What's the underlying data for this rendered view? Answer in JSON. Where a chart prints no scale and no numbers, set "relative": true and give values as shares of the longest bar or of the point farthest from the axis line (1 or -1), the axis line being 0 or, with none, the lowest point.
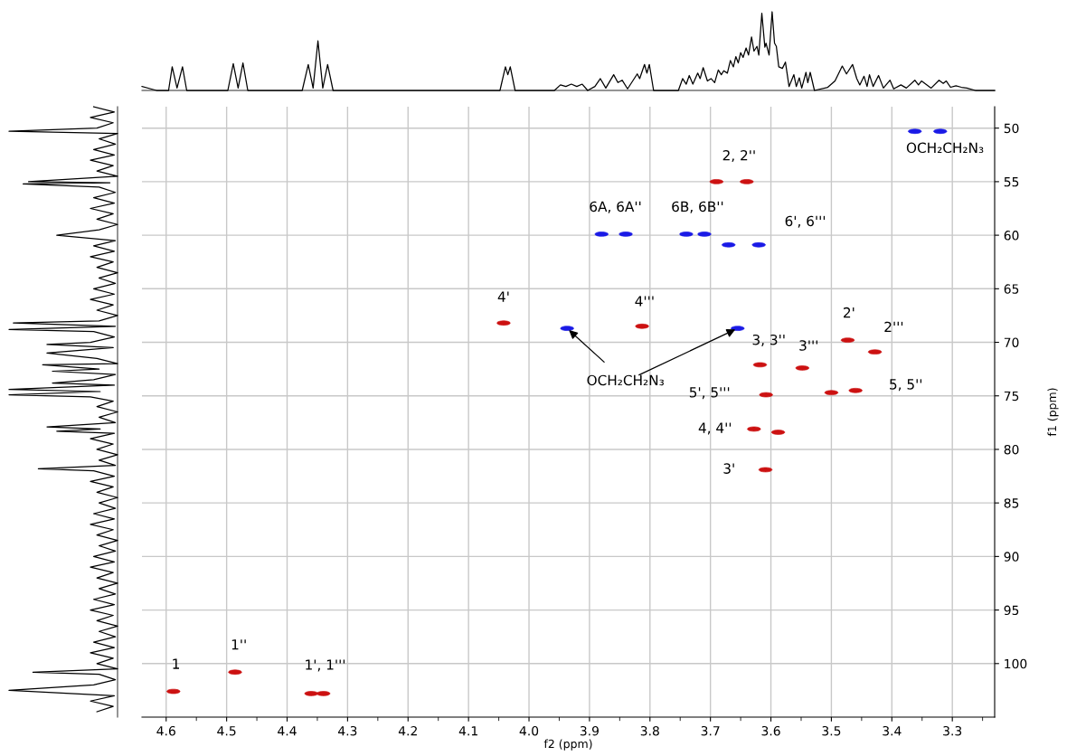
{
  "chart_data": [
    {
      "type": "line",
      "relative": true,
      "tick_labels": false,
      "color": "#000000",
      "xlim": [
        4.64,
        3.23
      ],
      "xticks": [
        4.6,
        4.5,
        4.4,
        4.3,
        4.2,
        4.1,
        4.0,
        3.9,
        3.8,
        3.7,
        3.6,
        3.5,
        3.4,
        3.3
      ],
      "x": [
        4.64,
        4.616,
        4.596,
        4.59,
        4.582,
        4.573,
        4.566,
        4.498,
        4.489,
        4.481,
        4.473,
        4.465,
        4.375,
        4.365,
        4.357,
        4.349,
        4.341,
        4.333,
        4.324,
        4.048,
        4.039,
        4.035,
        4.031,
        4.023,
        3.958,
        3.948,
        3.939,
        3.93,
        3.921,
        3.912,
        3.903,
        3.891,
        3.882,
        3.873,
        3.86,
        3.853,
        3.846,
        3.837,
        3.821,
        3.817,
        3.809,
        3.805,
        3.801,
        3.794,
        3.753,
        3.746,
        3.74,
        3.735,
        3.729,
        3.721,
        3.717,
        3.712,
        3.705,
        3.699,
        3.693,
        3.687,
        3.682,
        3.678,
        3.672,
        3.667,
        3.662,
        3.658,
        3.654,
        3.65,
        3.646,
        3.641,
        3.637,
        3.632,
        3.628,
        3.623,
        3.62,
        3.615,
        3.61,
        3.608,
        3.603,
        3.598,
        3.594,
        3.591,
        3.587,
        3.581,
        3.576,
        3.57,
        3.562,
        3.558,
        3.553,
        3.549,
        3.542,
        3.539,
        3.535,
        3.528,
        3.506,
        3.494,
        3.482,
        3.475,
        3.465,
        3.458,
        3.453,
        3.446,
        3.441,
        3.437,
        3.431,
        3.422,
        3.414,
        3.403,
        3.397,
        3.385,
        3.376,
        3.362,
        3.356,
        3.351,
        3.344,
        3.335,
        3.322,
        3.315,
        3.31,
        3.303,
        3.294,
        3.285,
        3.276,
        3.262,
        3.23
      ],
      "values": [
        0.05,
        0,
        0,
        0.3,
        0.03,
        0.3,
        0,
        0,
        0.34,
        0.03,
        0.35,
        0,
        0,
        0.33,
        0.03,
        0.63,
        0.03,
        0.33,
        0,
        0,
        0.3,
        0.2,
        0.3,
        0,
        0,
        0.07,
        0.05,
        0.08,
        0.05,
        0.08,
        0,
        0.05,
        0.15,
        0.03,
        0.2,
        0.1,
        0.13,
        0.02,
        0.21,
        0.15,
        0.33,
        0.22,
        0.33,
        0,
        0,
        0.15,
        0.08,
        0.19,
        0.08,
        0.22,
        0.15,
        0.29,
        0.12,
        0.15,
        0.1,
        0.26,
        0.2,
        0.25,
        0.22,
        0.38,
        0.3,
        0.43,
        0.35,
        0.48,
        0.42,
        0.54,
        0.45,
        0.68,
        0.5,
        0.56,
        0.45,
        0.98,
        0.55,
        0.6,
        0.45,
        1.0,
        0.6,
        0.56,
        0.3,
        0.28,
        0.36,
        0.05,
        0.2,
        0.05,
        0.16,
        0.03,
        0.23,
        0.1,
        0.23,
        0,
        0.04,
        0.12,
        0.31,
        0.21,
        0.33,
        0.15,
        0.07,
        0.18,
        0.05,
        0.2,
        0.05,
        0.19,
        0.03,
        0.13,
        0.02,
        0.07,
        0.03,
        0.13,
        0.07,
        0.12,
        0.08,
        0.03,
        0.13,
        0.09,
        0.12,
        0.04,
        0.06,
        0.04,
        0.03,
        0,
        0
      ]
    },
    {
      "type": "line",
      "relative": true,
      "orientation": "horizontal",
      "tick_labels": false,
      "color": "#000000",
      "ylim": [
        105,
        48
      ],
      "yticks": [
        50,
        55,
        60,
        65,
        70,
        75,
        80,
        85,
        90,
        95,
        100
      ],
      "x": [
        48.0,
        48.5,
        49.0,
        49.5,
        50.0,
        50.3,
        50.5,
        51.0,
        51.5,
        52.0,
        52.5,
        53.0,
        53.5,
        54.0,
        54.5,
        55.0,
        55.1,
        55.2,
        55.5,
        56.0,
        56.5,
        57.0,
        57.5,
        58.0,
        58.5,
        59.0,
        59.5,
        60.0,
        60.5,
        61.0,
        61.5,
        62.0,
        62.5,
        63.0,
        63.5,
        64.0,
        64.5,
        65.0,
        65.5,
        66.0,
        66.5,
        67.0,
        67.5,
        68.0,
        68.2,
        68.5,
        68.8,
        69.0,
        69.5,
        70.0,
        70.2,
        70.5,
        71.0,
        71.5,
        72.0,
        72.1,
        72.5,
        72.7,
        73.0,
        73.5,
        73.8,
        74.0,
        74.4,
        74.6,
        74.9,
        75.1,
        75.5,
        76.0,
        76.5,
        77.0,
        77.5,
        77.9,
        78.1,
        78.3,
        78.5,
        79.0,
        79.5,
        80.0,
        80.5,
        81.0,
        81.5,
        81.8,
        82.0,
        82.5,
        83.0,
        83.5,
        84.0,
        84.5,
        85.0,
        85.5,
        86.0,
        86.5,
        87.0,
        87.5,
        88.0,
        88.5,
        89.0,
        89.5,
        90.0,
        90.5,
        91.0,
        91.5,
        92.0,
        92.5,
        93.0,
        93.5,
        94.0,
        94.5,
        95.0,
        95.5,
        96.0,
        96.5,
        97.0,
        97.5,
        98.0,
        98.5,
        99.0,
        99.5,
        100.0,
        100.5,
        100.8,
        101.0,
        101.5,
        102.0,
        102.5,
        103.0,
        103.5,
        104.0,
        104.5
      ],
      "values": [
        -0.22,
        -0.03,
        -0.25,
        -0.04,
        -0.19,
        -1.0,
        0,
        -0.17,
        -0.02,
        -0.22,
        -0.03,
        -0.25,
        -0.04,
        -0.19,
        0,
        -0.82,
        -0.07,
        -0.87,
        -0.17,
        -0.02,
        -0.22,
        -0.03,
        -0.25,
        -0.04,
        -0.19,
        0,
        -0.17,
        -0.56,
        -0.02,
        -0.22,
        -0.03,
        -0.25,
        -0.04,
        -0.19,
        0,
        -0.17,
        -0.02,
        -0.22,
        -0.03,
        -0.25,
        -0.04,
        -0.19,
        0,
        -0.17,
        -0.96,
        -0.02,
        -1.0,
        -0.22,
        -0.03,
        -0.25,
        -0.65,
        -0.04,
        -0.65,
        -0.19,
        0,
        -0.69,
        -0.17,
        -0.6,
        -0.02,
        -0.22,
        -0.6,
        -0.03,
        -1.0,
        -0.16,
        -1.0,
        -0.25,
        -0.04,
        -0.19,
        0,
        -0.17,
        -0.02,
        -0.65,
        -0.16,
        -0.56,
        -0.03,
        -0.25,
        -0.04,
        -0.19,
        0,
        -0.17,
        -0.02,
        -0.73,
        -0.22,
        -0.03,
        -0.25,
        -0.04,
        -0.19,
        0,
        -0.17,
        -0.02,
        -0.22,
        -0.03,
        -0.25,
        -0.04,
        -0.19,
        0,
        -0.17,
        -0.02,
        -0.22,
        -0.03,
        -0.25,
        -0.04,
        -0.19,
        0,
        -0.17,
        -0.02,
        -0.22,
        -0.03,
        -0.25,
        -0.04,
        -0.19,
        0,
        -0.17,
        -0.02,
        -0.22,
        -0.03,
        -0.25,
        -0.04,
        -0.19,
        0,
        -0.78,
        -0.17,
        -0.02,
        -0.22,
        -1.0,
        -0.03,
        -0.25,
        -0.04,
        -0.19
      ]
    },
    {
      "type": "scatter",
      "xlabel": "f2 (ppm)",
      "ylabel": "f1 (ppm)",
      "marker": "circle",
      "grid": true,
      "xlim": [
        4.64,
        3.23
      ],
      "ylim": [
        105,
        48
      ],
      "xticks": [
        4.6,
        {
          "value": 4.55,
          "label": null
        },
        4.5,
        {
          "value": 4.45,
          "label": null
        },
        4.4,
        {
          "value": 4.35,
          "label": null
        },
        4.3,
        {
          "value": 4.25,
          "label": null
        },
        4.2,
        {
          "value": 4.15,
          "label": null
        },
        4.1,
        {
          "value": 4.05,
          "label": null
        },
        {
          "value": 4.0,
          "label": "4.0"
        },
        {
          "value": 3.95,
          "label": null
        },
        3.9,
        {
          "value": 3.85,
          "label": null
        },
        3.8,
        {
          "value": 3.75,
          "label": null
        },
        3.7,
        {
          "value": 3.65,
          "label": null
        },
        3.6,
        {
          "value": 3.55,
          "label": null
        },
        3.5,
        {
          "value": 3.45,
          "label": null
        },
        3.4,
        {
          "value": 3.35,
          "label": null
        },
        3.3,
        {
          "value": 3.25,
          "label": null
        }
      ],
      "yticks": [
        50,
        55,
        60,
        65,
        70,
        75,
        80,
        85,
        90,
        95,
        100
      ],
      "series": [
        {
          "color": "#cc1111",
          "x": [
            4.588,
            4.486,
            4.36,
            4.34,
            4.042,
            3.813,
            3.69,
            3.64,
            3.618,
            3.548,
            3.608,
            3.5,
            3.46,
            3.628,
            3.588,
            3.609,
            3.473,
            3.428
          ],
          "values": [
            102.6,
            100.8,
            102.8,
            102.8,
            68.2,
            68.5,
            55.0,
            55.0,
            72.1,
            72.4,
            74.9,
            74.7,
            74.5,
            78.1,
            78.4,
            81.9,
            69.8,
            70.9
          ]
        },
        {
          "color": "#1a1ae6",
          "x": [
            3.362,
            3.32,
            3.88,
            3.84,
            3.74,
            3.71,
            3.67,
            3.62,
            3.937,
            3.655
          ],
          "values": [
            50.3,
            50.3,
            59.9,
            59.9,
            59.9,
            59.9,
            60.9,
            60.9,
            68.7,
            68.7
          ]
        }
      ],
      "annotations": [
        {
          "text": "1",
          "x": 4.588,
          "y": 102.6
        },
        {
          "text": "1''",
          "x": 4.486,
          "y": 100.8
        },
        {
          "text": "1', 1'''",
          "x": 4.36,
          "y": 102.8
        },
        {
          "text": "4'",
          "x": 4.042,
          "y": 68.2
        },
        {
          "text": "4'''",
          "x": 3.813,
          "y": 68.5
        },
        {
          "text": "6A, 6A''",
          "x": 3.88,
          "y": 59.9
        },
        {
          "text": "6B, 6B''",
          "x": 3.74,
          "y": 59.9
        },
        {
          "text": "6', 6'''",
          "x": 3.62,
          "y": 60.9
        },
        {
          "text": "2, 2''",
          "x": 3.69,
          "y": 55.0
        },
        {
          "text": "2'",
          "x": 3.473,
          "y": 69.8
        },
        {
          "text": "2'''",
          "x": 3.428,
          "y": 70.9
        },
        {
          "text": "3, 3''",
          "x": 3.618,
          "y": 72.1
        },
        {
          "text": "3'''",
          "x": 3.548,
          "y": 72.4
        },
        {
          "text": "5', 5'''",
          "x": 3.608,
          "y": 74.9
        },
        {
          "text": "5, 5''",
          "x": 3.46,
          "y": 74.5
        },
        {
          "text": "4, 4''",
          "x": 3.628,
          "y": 78.1
        },
        {
          "text": "3'",
          "x": 3.609,
          "y": 81.9
        },
        {
          "text": "OCH₂CH₂N₃",
          "x": 3.362,
          "y": 50.3
        },
        {
          "text": "OCH₂CH₂N₃",
          "x": 3.937,
          "y": 68.7
        }
      ]
    }
  ]
}
